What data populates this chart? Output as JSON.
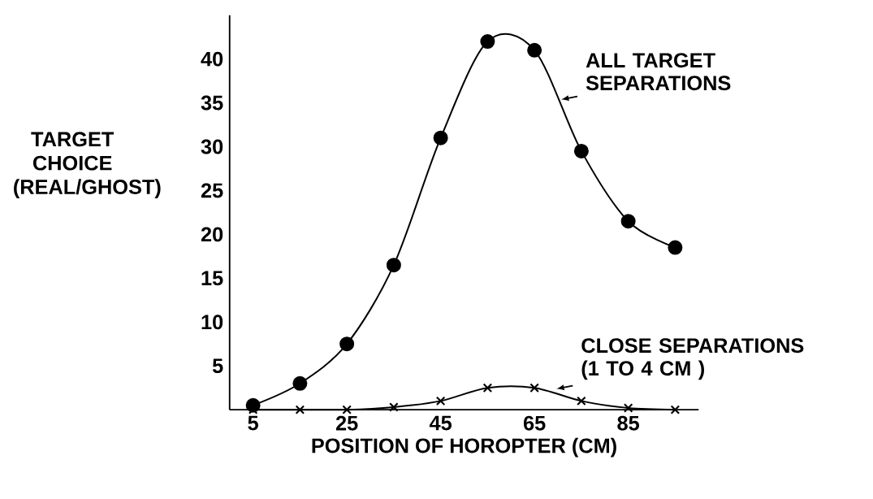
{
  "chart_data": {
    "type": "line",
    "xlabel": "POSITION OF HOROPTER (CM)",
    "ylabel": "TARGET CHOICE (REAL/GHOST)",
    "x": [
      5,
      15,
      25,
      35,
      45,
      55,
      65,
      75,
      85,
      95
    ],
    "series": [
      {
        "color": "#000000",
        "marker": "circle",
        "values": [
          0.5,
          3,
          7.5,
          16.5,
          31,
          42,
          41,
          29.5,
          21.5,
          18.5
        ]
      },
      {
        "color": "#000000",
        "marker": "cross",
        "values": [
          0,
          0,
          0,
          0.3,
          1,
          2.5,
          2.5,
          1,
          0.2,
          0
        ]
      }
    ],
    "annotations": [
      {
        "text": "ALL TARGET SEPARATIONS",
        "x": 70,
        "y": 35
      },
      {
        "text": "CLOSE SEPARATIONS (1 TO 4 CM )",
        "x": 69,
        "y": 2
      }
    ],
    "xlim": [
      0,
      100
    ],
    "ylim": [
      0,
      45
    ],
    "xticks": [
      5,
      25,
      45,
      65,
      85
    ],
    "yticks": [
      5,
      10,
      15,
      20,
      25,
      30,
      35,
      40
    ],
    "grid": false
  }
}
